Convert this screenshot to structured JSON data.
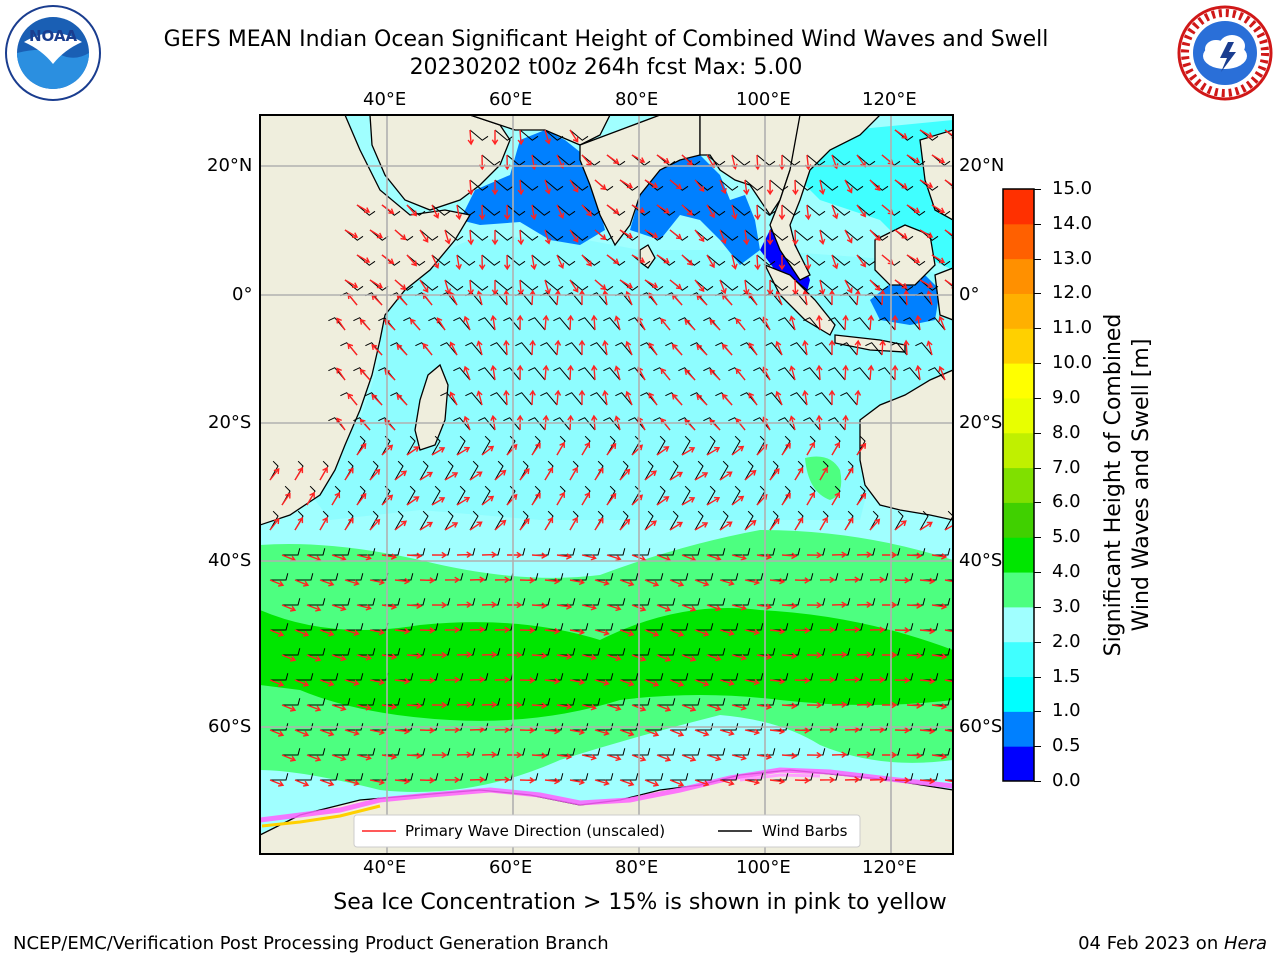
{
  "header": {
    "title_line1": "GEFS MEAN Indian Ocean Significant Height of Combined Wind Waves and Swell",
    "title_line2": "20230202 t00z 264h fcst   Max: 5.00"
  },
  "logos": {
    "left": {
      "text": "NOAA",
      "ring_text": "NATIONAL OCEANIC AND ATMOSPHERIC ADMINISTRATION · U.S. DEPARTMENT OF COMMERCE"
    },
    "right": {
      "ring_text": "NATIONAL WEATHER SERVICE"
    }
  },
  "map": {
    "lon_labels": [
      "40°E",
      "60°E",
      "80°E",
      "100°E",
      "120°E"
    ],
    "lat_labels": [
      "20°N",
      "0°",
      "20°S",
      "40°S",
      "60°S"
    ],
    "legend": {
      "primary_wave": "Primary Wave Direction (unscaled)",
      "wind_barbs": "Wind Barbs"
    },
    "colors": {
      "land": "#efeedd",
      "arrow": "#ff2222",
      "barb": "#000000",
      "grid": "#b0b0b0"
    }
  },
  "colorbar": {
    "label_line1": "Significant Height of Combined",
    "label_line2": "Wind Waves and Swell [m]",
    "ticks": [
      "0.0",
      "0.5",
      "1.0",
      "1.5",
      "2.0",
      "3.0",
      "4.0",
      "5.0",
      "6.0",
      "7.0",
      "8.0",
      "9.0",
      "10.0",
      "11.0",
      "12.0",
      "13.0",
      "14.0",
      "15.0"
    ],
    "colors": [
      "#0000ff",
      "#0080ff",
      "#00ffff",
      "#40ffff",
      "#a0ffff",
      "#4dff80",
      "#00e600",
      "#40d000",
      "#80e000",
      "#c0f000",
      "#e8ff00",
      "#ffff00",
      "#ffd000",
      "#ffb000",
      "#ff9000",
      "#ff6000",
      "#ff3000"
    ]
  },
  "caption": "Sea Ice Concentration > 15% is shown in pink to yellow",
  "footer": {
    "left": "NCEP/EMC/Verification Post Processing Product Generation Branch",
    "right_prefix": "04 Feb 2023 on ",
    "right_host": "Hera"
  }
}
